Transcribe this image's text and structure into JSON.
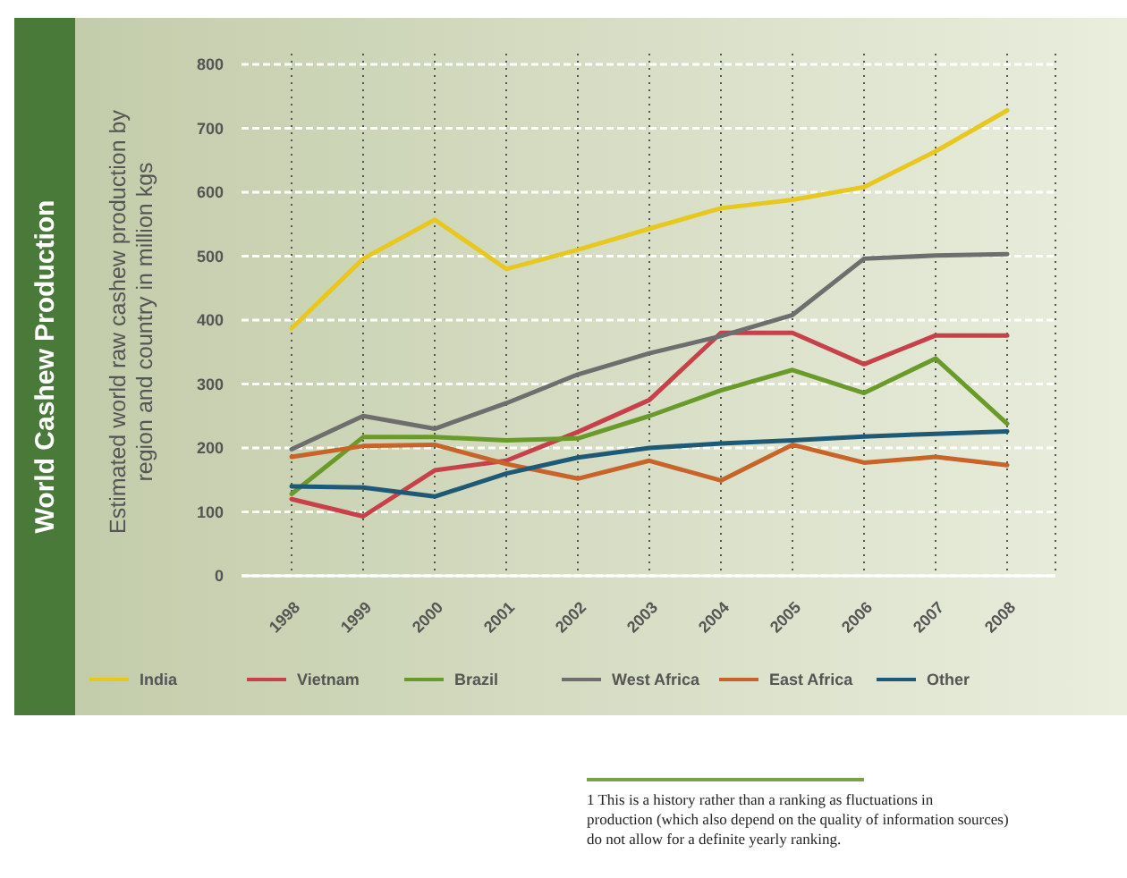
{
  "chart_data": {
    "type": "line",
    "title": "World Cashew Production",
    "ylabel": "Estimated world raw cashew production by region and country in million kgs",
    "categories": [
      "1998",
      "1999",
      "2000",
      "2001",
      "2002",
      "2003",
      "2004",
      "2005",
      "2006",
      "2007",
      "2008"
    ],
    "series": [
      {
        "name": "India",
        "color": "#e8c81e",
        "values": [
          387,
          496,
          557,
          480,
          510,
          543,
          575,
          588,
          608,
          664,
          728
        ]
      },
      {
        "name": "Vietnam",
        "color": "#c8404a",
        "values": [
          120,
          93,
          165,
          180,
          225,
          275,
          380,
          380,
          331,
          376,
          376
        ]
      },
      {
        "name": "Brazil",
        "color": "#6a9a2a",
        "values": [
          128,
          217,
          217,
          212,
          215,
          250,
          290,
          322,
          286,
          340,
          238
        ]
      },
      {
        "name": "West Africa",
        "color": "#6e6e6e",
        "values": [
          198,
          250,
          230,
          270,
          315,
          348,
          375,
          408,
          496,
          501,
          503
        ]
      },
      {
        "name": "East Africa",
        "color": "#c8642a",
        "values": [
          186,
          203,
          205,
          175,
          152,
          180,
          149,
          205,
          177,
          186,
          173
        ]
      },
      {
        "name": "Other",
        "color": "#1e5a78",
        "values": [
          140,
          138,
          124,
          160,
          185,
          200,
          207,
          212,
          218,
          222,
          226
        ]
      }
    ],
    "ylim": [
      0,
      800
    ],
    "yticks": [
      0,
      100,
      200,
      300,
      400,
      500,
      600,
      700,
      800
    ],
    "grid": true,
    "legend": "bottom",
    "marker": "none",
    "line_style": "solid",
    "annotations": [
      "1 This is a history rather than a ranking as fluctuations in production (which also depend on the quality of information sources) do not allow for a definite yearly ranking."
    ]
  }
}
